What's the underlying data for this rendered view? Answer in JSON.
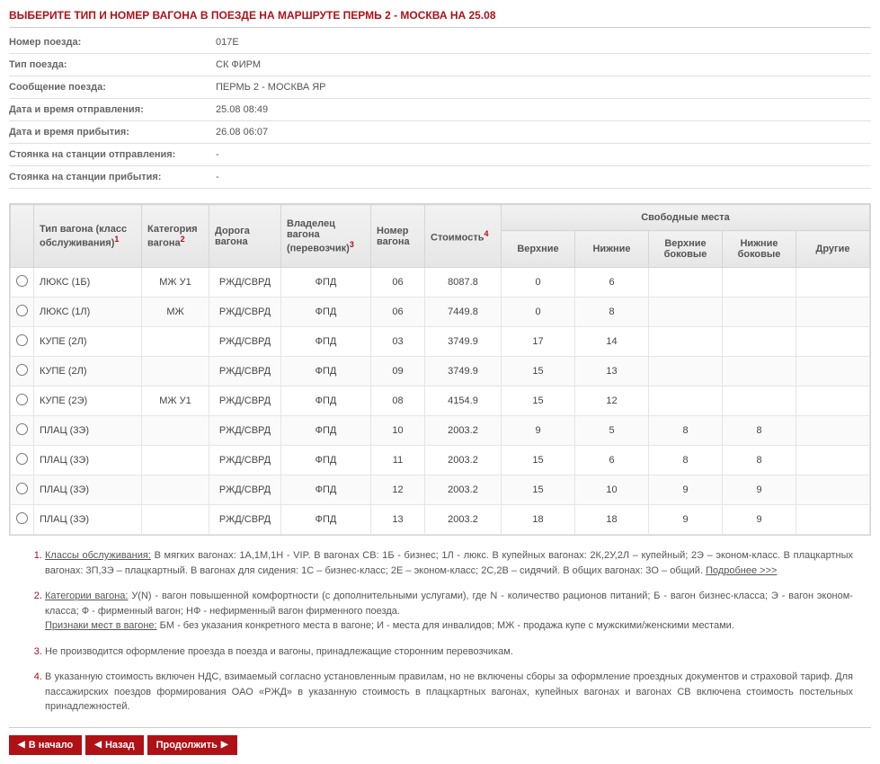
{
  "title": "ВЫБЕРИТЕ ТИП И НОМЕР ВАГОНА В ПОЕЗДЕ НА МАРШРУТЕ ПЕРМЬ 2 - МОСКВА НА 25.08",
  "info": [
    {
      "label": "Номер поезда:",
      "value": "017Е"
    },
    {
      "label": "Тип поезда:",
      "value": "СК ФИРМ"
    },
    {
      "label": "Сообщение поезда:",
      "value": "ПЕРМЬ 2 - МОСКВА ЯР"
    },
    {
      "label": "Дата и время отправления:",
      "value": "25.08 08:49"
    },
    {
      "label": "Дата и время прибытия:",
      "value": "26.08 06:07"
    },
    {
      "label": "Стоянка на станции отправления:",
      "value": "-"
    },
    {
      "label": "Стоянка на станции прибытия:",
      "value": "-"
    }
  ],
  "table": {
    "headers": {
      "type": "Тип вагона (класс обслуживания)",
      "cat": "Категория вагона",
      "road": "Дорога вагона",
      "owner": "Владелец вагона (перевозчик)",
      "num": "Номер вагона",
      "cost": "Стоимость",
      "seats_group": "Свободные места",
      "upper": "Верхние",
      "lower": "Нижние",
      "upper_side": "Верхние боковые",
      "lower_side": "Нижние боковые",
      "other": "Другие"
    },
    "sup": {
      "type": "1",
      "cat": "2",
      "owner": "3",
      "cost": "4"
    },
    "rows": [
      {
        "type": "ЛЮКС (1Б)",
        "cat": "МЖ У1",
        "road": "РЖД/СВРД",
        "owner": "ФПД",
        "num": "06",
        "cost": "8087.8",
        "upper": "0",
        "lower": "6",
        "upper_side": "",
        "lower_side": "",
        "other": ""
      },
      {
        "type": "ЛЮКС (1Л)",
        "cat": "МЖ",
        "road": "РЖД/СВРД",
        "owner": "ФПД",
        "num": "06",
        "cost": "7449.8",
        "upper": "0",
        "lower": "8",
        "upper_side": "",
        "lower_side": "",
        "other": ""
      },
      {
        "type": "КУПЕ (2Л)",
        "cat": "",
        "road": "РЖД/СВРД",
        "owner": "ФПД",
        "num": "03",
        "cost": "3749.9",
        "upper": "17",
        "lower": "14",
        "upper_side": "",
        "lower_side": "",
        "other": ""
      },
      {
        "type": "КУПЕ (2Л)",
        "cat": "",
        "road": "РЖД/СВРД",
        "owner": "ФПД",
        "num": "09",
        "cost": "3749.9",
        "upper": "15",
        "lower": "13",
        "upper_side": "",
        "lower_side": "",
        "other": ""
      },
      {
        "type": "КУПЕ (2Э)",
        "cat": "МЖ У1",
        "road": "РЖД/СВРД",
        "owner": "ФПД",
        "num": "08",
        "cost": "4154.9",
        "upper": "15",
        "lower": "12",
        "upper_side": "",
        "lower_side": "",
        "other": ""
      },
      {
        "type": "ПЛАЦ (3Э)",
        "cat": "",
        "road": "РЖД/СВРД",
        "owner": "ФПД",
        "num": "10",
        "cost": "2003.2",
        "upper": "9",
        "lower": "5",
        "upper_side": "8",
        "lower_side": "8",
        "other": ""
      },
      {
        "type": "ПЛАЦ (3Э)",
        "cat": "",
        "road": "РЖД/СВРД",
        "owner": "ФПД",
        "num": "11",
        "cost": "2003.2",
        "upper": "15",
        "lower": "6",
        "upper_side": "8",
        "lower_side": "8",
        "other": ""
      },
      {
        "type": "ПЛАЦ (3Э)",
        "cat": "",
        "road": "РЖД/СВРД",
        "owner": "ФПД",
        "num": "12",
        "cost": "2003.2",
        "upper": "15",
        "lower": "10",
        "upper_side": "9",
        "lower_side": "9",
        "other": ""
      },
      {
        "type": "ПЛАЦ (3Э)",
        "cat": "",
        "road": "РЖД/СВРД",
        "owner": "ФПД",
        "num": "13",
        "cost": "2003.2",
        "upper": "18",
        "lower": "18",
        "upper_side": "9",
        "lower_side": "9",
        "other": ""
      }
    ]
  },
  "notes": {
    "n1_a": "Классы обслуживания:",
    "n1_b": " В мягких вагонах: 1А,1М,1Н - VIP. В вагонах СВ: 1Б - бизнес; 1Л - люкс. В купейных вагонах: 2К,2У,2Л – купейный; 2Э – эконом-класс. В плацкартных вагонах: 3П,3Э – плацкартный. В вагонах для сидения: 1С – бизнес-класс; 2Е – эконом-класс; 2С,2В – сидячий. В общих вагонах: 3О – общий.   ",
    "n1_link": "Подробнее >>>",
    "n2_a": "Категории вагона:",
    "n2_b": " У(N) - вагон повышенной комфортности (c дополнительными услугами), где N - количество рационов питаний; Б - вагон бизнес-класса; Э - вагон эконом-класса; Ф - фирменный вагон; НФ - нефирменный вагон фирменного поезда.",
    "n2_c": "Признаки мест в вагоне:",
    "n2_d": " БМ - без указания конкретного места в вагоне; И - места для инвалидов; МЖ - продажа купе с мужскими/женскими местами.",
    "n3": "Не производится оформление проезда в поезда и вагоны, принадлежащие сторонним перевозчикам.",
    "n4": "В указанную стоимость включен НДС, взимаемый согласно установленным правилам, но не включены сборы за оформление проездных документов и страховой тариф. Для пассажирских поездов формирования ОАО «РЖД» в указанную стоимость в плацкартных вагонах, купейных вагонах и вагонах СВ включена стоимость постельных принадлежностей."
  },
  "buttons": {
    "start": "В начало",
    "back": "Назад",
    "next": "Продолжить"
  }
}
